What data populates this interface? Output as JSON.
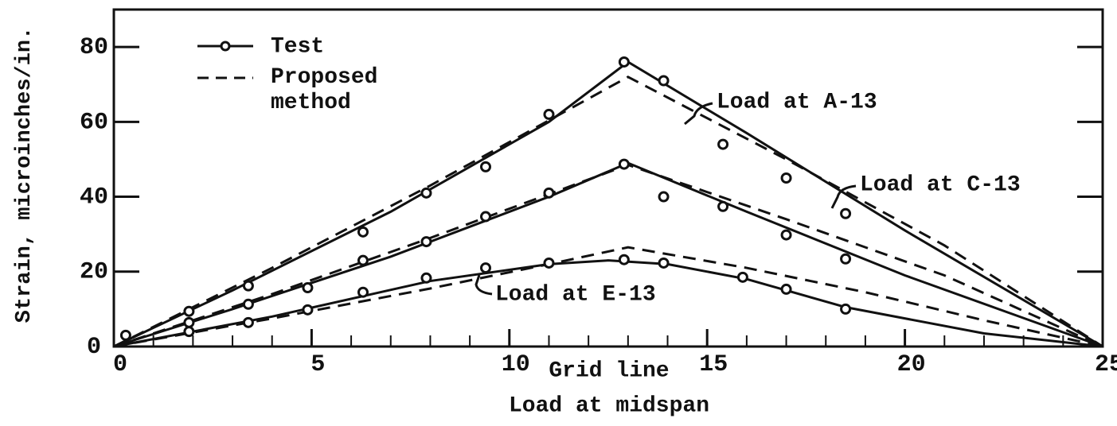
{
  "chart_data": {
    "type": "line",
    "x_label": "Grid line",
    "subtitle": "Load at midspan",
    "y_label": "Strain, microinches/in.",
    "xlim": [
      0,
      25
    ],
    "xticks": [
      0,
      5,
      10,
      15,
      20,
      25
    ],
    "xminorticks": [
      1,
      2,
      3,
      4,
      6,
      7,
      8,
      9,
      11,
      12,
      13,
      14,
      16,
      17,
      18,
      19,
      21,
      22,
      23,
      24
    ],
    "ylim": [
      0,
      90
    ],
    "yticks": [
      0,
      20,
      40,
      60,
      80
    ],
    "legend": [
      "Test",
      "Proposed method"
    ],
    "color": "#111111",
    "series": [
      {
        "name": "Load at A-13",
        "test_x": [
          0.3,
          1.9,
          3.4,
          6.3,
          7.9,
          9.4,
          11.0,
          12.9,
          13.9,
          15.4,
          17.0,
          18.5
        ],
        "test_values": [
          3,
          9.4,
          16.2,
          30.6,
          41,
          48,
          62,
          76,
          71,
          54,
          45,
          35.5
        ],
        "fit_x": [
          0,
          3,
          7,
          11,
          13,
          16,
          20,
          25
        ],
        "fit_values": [
          0,
          15,
          36,
          60,
          76,
          57,
          31,
          0
        ],
        "proposed_x": [
          0,
          4,
          8,
          13,
          17,
          21,
          25
        ],
        "proposed_values": [
          0,
          21,
          43,
          72,
          50,
          27,
          0
        ]
      },
      {
        "name": "Load at C-13",
        "test_x": [
          1.9,
          3.4,
          4.9,
          6.3,
          7.9,
          9.4,
          11.0,
          12.9,
          13.9,
          15.4,
          17.0,
          18.5
        ],
        "test_values": [
          6.4,
          11.3,
          15.7,
          23,
          28,
          34.7,
          41,
          48.7,
          40,
          37.4,
          29.8,
          23.4
        ],
        "fit_x": [
          0,
          3,
          7,
          11,
          13,
          16,
          20,
          25
        ],
        "fit_values": [
          0,
          10,
          24,
          40,
          49,
          36,
          19,
          0
        ],
        "proposed_x": [
          0,
          4,
          8,
          13,
          17,
          21,
          25
        ],
        "proposed_values": [
          0,
          14,
          29,
          48.5,
          34,
          19,
          0
        ]
      },
      {
        "name": "Load at E-13",
        "test_x": [
          1.9,
          3.4,
          4.9,
          6.3,
          7.9,
          9.4,
          11.0,
          12.9,
          13.9,
          15.9,
          17.0,
          18.5
        ],
        "test_values": [
          4,
          6.4,
          9.8,
          14.5,
          18.3,
          21,
          22.3,
          23.2,
          22.3,
          18.5,
          15.3,
          10
        ],
        "fit_x": [
          0,
          4,
          8,
          11,
          12.5,
          14,
          16,
          18.5,
          22,
          25
        ],
        "fit_values": [
          0,
          8,
          17.5,
          22,
          23,
          22,
          18,
          10.5,
          3.5,
          0
        ],
        "proposed_x": [
          0,
          4,
          8,
          11,
          13,
          16,
          19,
          22,
          25
        ],
        "proposed_values": [
          0,
          7.5,
          15.5,
          22,
          26.5,
          21,
          14.5,
          7,
          0
        ]
      }
    ]
  }
}
